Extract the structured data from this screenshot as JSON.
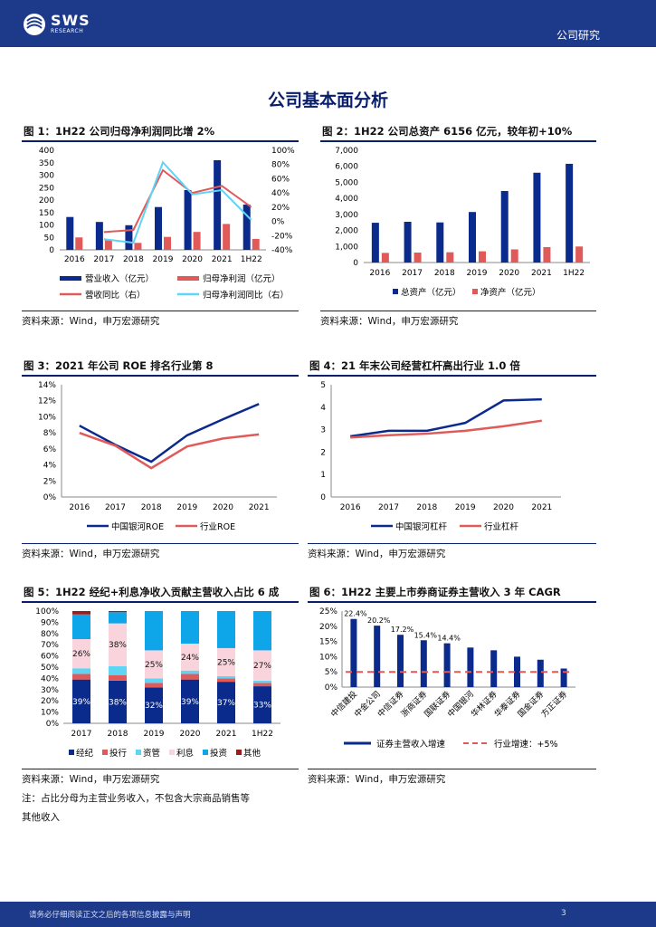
{
  "header": {
    "logo_text": "SWS",
    "logo_sub": "RESEARCH",
    "section": "公司研究"
  },
  "page_title": "公司基本面分析",
  "colors": {
    "navy": "#0a2a8c",
    "red": "#e05a5a",
    "cyan": "#5fd4f5",
    "pink": "#f9d4dc",
    "darkred": "#9c1b1b",
    "brand": "#1d3a8a"
  },
  "figures": [
    {
      "title": "图 1：1H22 公司归母净利润同比增 2%",
      "source": "资料来源：Wind，申万宏源研究"
    },
    {
      "title": "图 2：1H22 公司总资产 6156 亿元，较年初+10%",
      "source": "资料来源：Wind，申万宏源研究"
    },
    {
      "title": "图 3：2021 年公司 ROE 排名行业第 8",
      "source": "资料来源：Wind，申万宏源研究"
    },
    {
      "title": "图 4：21 年末公司经营杠杆高出行业 1.0 倍",
      "source": "资料来源：Wind，申万宏源研究"
    },
    {
      "title": "图 5：1H22 经纪+利息净收入贡献主营收入占比 6 成",
      "source": "资料来源：Wind，申万宏源研究",
      "note_line1": "注：占比分母为主营业务收入，不包含大宗商品销售等",
      "note_line2": "其他收入"
    },
    {
      "title": "图 6：1H22 主要上市券商证券主营收入 3 年 CAGR",
      "source": "资料来源：Wind，申万宏源研究"
    }
  ],
  "chart_data": [
    {
      "type": "bar",
      "categories": [
        "2016",
        "2017",
        "2018",
        "2019",
        "2020",
        "2021",
        "1H22"
      ],
      "series": [
        {
          "name": "营业收入（亿元）",
          "kind": "bar",
          "axis": "left",
          "values": [
            132,
            112,
            99,
            172,
            240,
            360,
            182
          ]
        },
        {
          "name": "归母净利润（亿元）",
          "kind": "bar",
          "axis": "left",
          "values": [
            50,
            38,
            28,
            52,
            72,
            104,
            44
          ]
        },
        {
          "name": "营收同比（右）",
          "kind": "line",
          "axis": "right",
          "values": [
            null,
            -15,
            -12,
            72,
            40,
            50,
            20
          ]
        },
        {
          "name": "归母净利润同比（右）",
          "kind": "line",
          "axis": "right",
          "values": [
            null,
            -25,
            -30,
            83,
            38,
            44,
            2
          ]
        }
      ],
      "ylim": [
        0,
        400
      ],
      "yticks": [
        "0",
        "50",
        "100",
        "150",
        "200",
        "250",
        "300",
        "350",
        "400"
      ],
      "y2lim": [
        -40,
        100
      ],
      "y2ticks": [
        "-40%",
        "-20%",
        "0%",
        "20%",
        "40%",
        "60%",
        "80%",
        "100%"
      ],
      "legend_position": "bottom"
    },
    {
      "type": "bar",
      "categories": [
        "2016",
        "2017",
        "2018",
        "2019",
        "2020",
        "2021",
        "1H22"
      ],
      "series": [
        {
          "name": "总资产（亿元）",
          "values": [
            2480,
            2540,
            2500,
            3150,
            4460,
            5600,
            6156
          ]
        },
        {
          "name": "净资产（亿元）",
          "values": [
            600,
            620,
            640,
            700,
            820,
            960,
            1000
          ]
        }
      ],
      "ylim": [
        0,
        7000
      ],
      "yticks": [
        "0",
        "1,000",
        "2,000",
        "3,000",
        "4,000",
        "5,000",
        "6,000",
        "7,000"
      ],
      "legend_position": "bottom"
    },
    {
      "type": "line",
      "categories": [
        "2016",
        "2017",
        "2018",
        "2019",
        "2020",
        "2021"
      ],
      "series": [
        {
          "name": "中国银河ROE",
          "values": [
            8.9,
            6.5,
            4.4,
            7.7,
            9.7,
            11.6
          ]
        },
        {
          "name": "行业ROE",
          "values": [
            8.0,
            6.4,
            3.6,
            6.3,
            7.3,
            7.8
          ]
        }
      ],
      "ylim": [
        0,
        14
      ],
      "yticks": [
        "0%",
        "2%",
        "4%",
        "6%",
        "8%",
        "10%",
        "12%",
        "14%"
      ],
      "legend_position": "bottom"
    },
    {
      "type": "line",
      "categories": [
        "2016",
        "2017",
        "2018",
        "2019",
        "2020",
        "2021"
      ],
      "series": [
        {
          "name": "中国银河杠杆",
          "values": [
            2.7,
            2.95,
            2.95,
            3.3,
            4.3,
            4.35
          ]
        },
        {
          "name": "行业杠杆",
          "values": [
            2.65,
            2.75,
            2.82,
            2.95,
            3.15,
            3.4
          ]
        }
      ],
      "ylim": [
        0,
        5
      ],
      "yticks": [
        "0",
        "1",
        "2",
        "3",
        "4",
        "5"
      ],
      "legend_position": "bottom"
    },
    {
      "type": "bar",
      "stacked": true,
      "categories": [
        "2017",
        "2018",
        "2019",
        "2020",
        "2021",
        "1H22"
      ],
      "series": [
        {
          "name": "经纪",
          "values": [
            39,
            38,
            32,
            39,
            37,
            33
          ]
        },
        {
          "name": "投行",
          "values": [
            5,
            5,
            4,
            5,
            3,
            3
          ]
        },
        {
          "name": "资管",
          "values": [
            5,
            8,
            4,
            3,
            2,
            2
          ]
        },
        {
          "name": "利息",
          "values": [
            26,
            38,
            25,
            24,
            25,
            27
          ]
        },
        {
          "name": "投资",
          "values": [
            22,
            10,
            35,
            29,
            33,
            35
          ]
        },
        {
          "name": "其他",
          "values": [
            3,
            1,
            0,
            0,
            0,
            0
          ]
        }
      ],
      "data_labels": [
        {
          "series": "经纪",
          "labels": [
            "39%",
            "38%",
            "32%",
            "39%",
            "37%",
            "33%"
          ]
        },
        {
          "series": "利息",
          "labels": [
            "26%",
            "38%",
            "25%",
            "24%",
            "25%",
            "27%"
          ]
        }
      ],
      "ylim": [
        0,
        100
      ],
      "yticks": [
        "0%",
        "10%",
        "20%",
        "30%",
        "40%",
        "50%",
        "60%",
        "70%",
        "80%",
        "90%",
        "100%"
      ],
      "legend_position": "bottom"
    },
    {
      "type": "bar",
      "categories": [
        "中信建投",
        "中金公司",
        "中信证券",
        "浙商证券",
        "国联证券",
        "中国银河",
        "华林证券",
        "华泰证券",
        "国金证券",
        "方正证券"
      ],
      "series": [
        {
          "name": "证券主营收入增速",
          "kind": "bar",
          "values": [
            22.4,
            20.2,
            17.2,
            15.4,
            14.4,
            13.0,
            12.1,
            10.0,
            9.0,
            6.1
          ]
        },
        {
          "name": "行业增速：+5%",
          "kind": "line",
          "values": [
            5,
            5,
            5,
            5,
            5,
            5,
            5,
            5,
            5,
            5
          ]
        }
      ],
      "bar_labels": [
        "22.4%",
        "20.2%",
        "17.2%",
        "15.4%",
        "14.4%"
      ],
      "ylim": [
        0,
        25
      ],
      "yticks": [
        "0%",
        "5%",
        "10%",
        "15%",
        "20%",
        "25%"
      ],
      "legend_position": "bottom"
    }
  ],
  "footer": {
    "disclaimer": "请务必仔细阅读正文之后的各项信息披露与声明",
    "page_number": "3"
  }
}
